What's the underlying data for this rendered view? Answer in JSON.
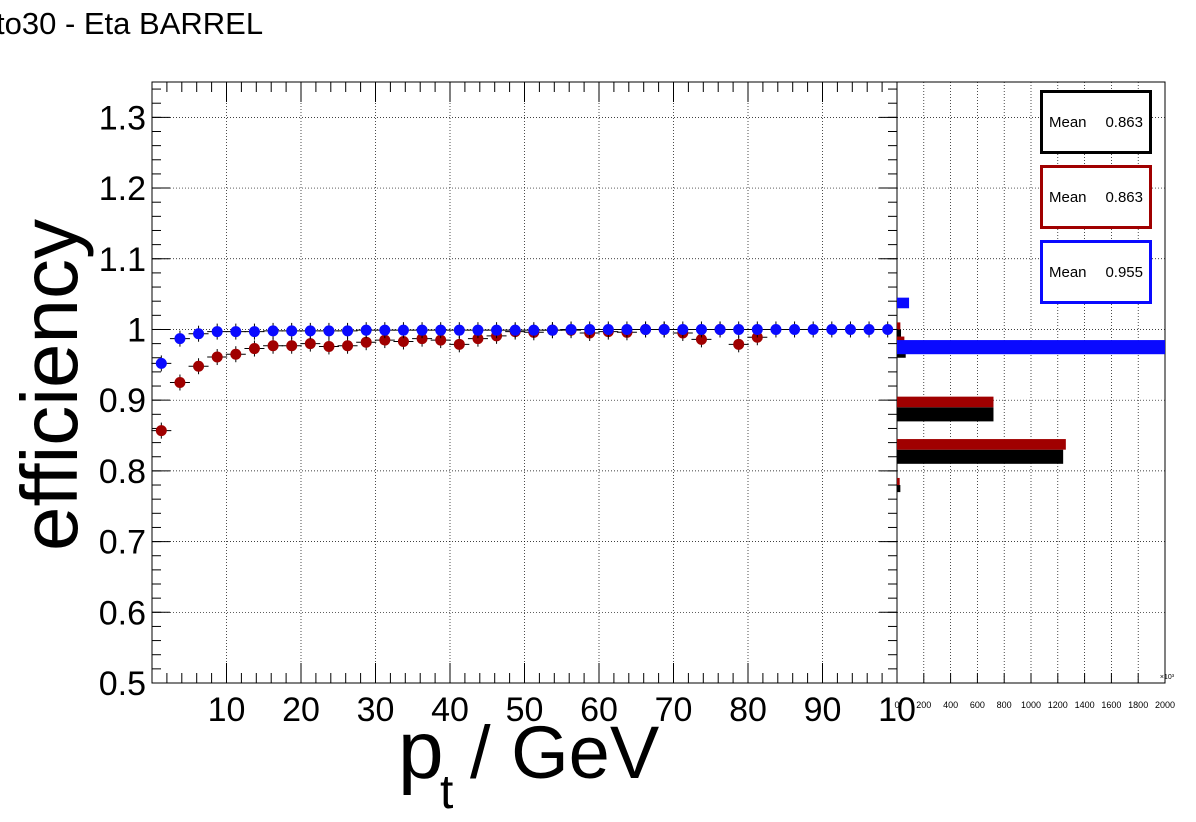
{
  "title": "to30 - Eta BARREL",
  "colors": {
    "black": "#000000",
    "red": "#a00000",
    "blue": "#0a0aff"
  },
  "chart_data": [
    {
      "type": "scatter",
      "xlabel": "p_t / GeV",
      "ylabel": "efficiency",
      "xlim": [
        0,
        100
      ],
      "ylim": [
        0.5,
        1.35
      ],
      "grid": true,
      "x_ticks": [
        "10",
        "20",
        "30",
        "40",
        "50",
        "60",
        "70",
        "80",
        "90",
        "10"
      ],
      "y_ticks": [
        "0.5",
        "0.6",
        "0.7",
        "0.8",
        "0.9",
        "1",
        "1.1",
        "1.2",
        "1.3"
      ],
      "series": [
        {
          "color": "#0a0aff",
          "x": [
            1.25,
            3.75,
            6.25,
            8.75,
            11.25,
            13.75,
            16.25,
            18.75,
            21.25,
            23.75,
            26.25,
            28.75,
            31.25,
            33.75,
            36.25,
            38.75,
            41.25,
            43.75,
            46.25,
            48.75,
            51.25,
            53.75,
            56.25,
            58.75,
            61.25,
            63.75,
            66.25,
            68.75,
            71.25,
            73.75,
            76.25,
            78.75,
            81.25,
            83.75,
            86.25,
            88.75,
            91.25,
            93.75,
            96.25,
            98.75
          ],
          "y": [
            0.952,
            0.987,
            0.994,
            0.997,
            0.997,
            0.997,
            0.998,
            0.998,
            0.998,
            0.998,
            0.998,
            0.999,
            0.999,
            0.999,
            0.999,
            0.999,
            0.999,
            0.999,
            0.999,
            0.999,
            0.999,
            0.999,
            1.0,
            1.0,
            1.0,
            1.0,
            1.0,
            1.0,
            1.0,
            1.0,
            1.0,
            1.0,
            1.0,
            1.0,
            1.0,
            1.0,
            1.0,
            1.0,
            1.0,
            1.0
          ]
        },
        {
          "color": "#a00000",
          "x": [
            1.25,
            3.75,
            6.25,
            8.75,
            11.25,
            13.75,
            16.25,
            18.75,
            21.25,
            23.75,
            26.25,
            28.75,
            31.25,
            33.75,
            36.25,
            38.75,
            41.25,
            43.75,
            46.25,
            48.75,
            51.25,
            53.75,
            56.25,
            58.75,
            61.25,
            63.75,
            66.25,
            68.75,
            71.25,
            73.75,
            76.25,
            78.75,
            81.25
          ],
          "y": [
            0.857,
            0.925,
            0.948,
            0.961,
            0.965,
            0.973,
            0.977,
            0.977,
            0.98,
            0.976,
            0.977,
            0.982,
            0.985,
            0.983,
            0.987,
            0.985,
            0.979,
            0.987,
            0.991,
            0.997,
            0.996,
            0.999,
            0.999,
            0.995,
            0.997,
            0.996,
            1.0,
            1.0,
            0.995,
            0.986,
            1.0,
            0.979,
            0.989
          ]
        }
      ]
    },
    {
      "type": "bar",
      "orientation": "horizontal",
      "xlim": [
        0,
        2000
      ],
      "x_ticks": [
        "0",
        "200",
        "400",
        "600",
        "800",
        "1000",
        "1200",
        "1400",
        "1600",
        "1800",
        "2000"
      ],
      "x_exponent": "×10³",
      "ylim": [
        0.5,
        1.35
      ],
      "series": [
        {
          "color": "#000000",
          "stats": {
            "label": "Mean",
            "value": "0.863"
          },
          "bins": [
            [
              0.77,
              0.78,
              25
            ],
            [
              0.81,
              0.83,
              1240
            ],
            [
              0.87,
              0.89,
              720
            ],
            [
              0.96,
              0.98,
              65
            ],
            [
              0.985,
              1.0,
              30
            ]
          ]
        },
        {
          "color": "#a00000",
          "stats": {
            "label": "Mean",
            "value": "0.863"
          },
          "bins": [
            [
              0.78,
              0.79,
              20
            ],
            [
              0.83,
              0.845,
              1260
            ],
            [
              0.89,
              0.905,
              720
            ],
            [
              0.98,
              0.99,
              55
            ],
            [
              1.0,
              1.01,
              25
            ]
          ]
        },
        {
          "color": "#0a0aff",
          "stats": {
            "label": "Mean",
            "value": "0.955"
          },
          "bins": [
            [
              0.965,
              0.985,
              2000
            ],
            [
              1.03,
              1.045,
              90
            ]
          ]
        }
      ]
    }
  ]
}
